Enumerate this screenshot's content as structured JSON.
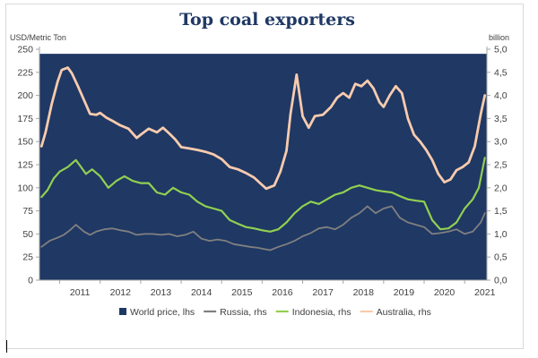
{
  "chart_data": {
    "type": "line",
    "title": "Top coal exporters",
    "left_unit": "USD/Metric Ton",
    "right_unit": "billion",
    "left_axis": {
      "min": 0,
      "max": 250,
      "ticks": [
        "0",
        "25",
        "50",
        "75",
        "100",
        "125",
        "150",
        "175",
        "200",
        "225",
        "250"
      ]
    },
    "right_axis": {
      "min": 0,
      "max": 5,
      "ticks": [
        "0,0",
        "0,5",
        "1,0",
        "1,5",
        "2,0",
        "2,5",
        "3,0",
        "3,5",
        "4,0",
        "4,5",
        "5,0"
      ]
    },
    "x_ticks": [
      "2011",
      "2012",
      "2013",
      "2014",
      "2015",
      "2016",
      "2017",
      "2018",
      "2019",
      "2020",
      "2021"
    ],
    "x_range": [
      2010.5,
      2021.55
    ],
    "legend_position": "bottom",
    "colors": {
      "world_price": "#1f3864",
      "russia": "#808080",
      "indonesia": "#92d050",
      "australia": "#f8cbad"
    },
    "series": [
      {
        "name": "World price, lhs",
        "axis": "left",
        "kind": "area",
        "color_key": "world_price",
        "x": [
          2010.5,
          2021.55
        ],
        "values": [
          245,
          245
        ]
      },
      {
        "name": "Russia, rhs",
        "axis": "right",
        "color_key": "russia",
        "x": [
          2010.55,
          2010.75,
          2010.95,
          2011.1,
          2011.25,
          2011.4,
          2011.6,
          2011.75,
          2011.9,
          2012.1,
          2012.3,
          2012.5,
          2012.7,
          2012.9,
          2013.1,
          2013.3,
          2013.5,
          2013.7,
          2013.9,
          2014.1,
          2014.3,
          2014.5,
          2014.7,
          2014.9,
          2015.1,
          2015.3,
          2015.5,
          2015.7,
          2015.9,
          2016.0,
          2016.2,
          2016.4,
          2016.6,
          2016.8,
          2017.0,
          2017.2,
          2017.4,
          2017.6,
          2017.8,
          2018.0,
          2018.2,
          2018.4,
          2018.6,
          2018.8,
          2019.0,
          2019.2,
          2019.4,
          2019.6,
          2019.8,
          2020.0,
          2020.2,
          2020.4,
          2020.6,
          2020.8,
          2021.0,
          2021.2,
          2021.4,
          2021.5
        ],
        "values": [
          0.72,
          0.85,
          0.92,
          0.98,
          1.08,
          1.2,
          1.05,
          0.98,
          1.05,
          1.1,
          1.12,
          1.08,
          1.05,
          0.98,
          1.0,
          1.0,
          0.98,
          1.0,
          0.95,
          0.98,
          1.05,
          0.9,
          0.85,
          0.88,
          0.85,
          0.78,
          0.75,
          0.72,
          0.7,
          0.68,
          0.65,
          0.72,
          0.78,
          0.85,
          0.95,
          1.02,
          1.12,
          1.15,
          1.1,
          1.2,
          1.35,
          1.45,
          1.6,
          1.45,
          1.55,
          1.6,
          1.35,
          1.25,
          1.2,
          1.15,
          1.0,
          1.02,
          1.05,
          1.1,
          1.0,
          1.05,
          1.25,
          1.45
        ]
      },
      {
        "name": "Indonesia, rhs",
        "axis": "right",
        "color_key": "indonesia",
        "x": [
          2010.55,
          2010.7,
          2010.85,
          2011.0,
          2011.2,
          2011.4,
          2011.5,
          2011.65,
          2011.8,
          2012.0,
          2012.2,
          2012.4,
          2012.6,
          2012.8,
          2013.0,
          2013.2,
          2013.4,
          2013.6,
          2013.8,
          2014.0,
          2014.2,
          2014.4,
          2014.6,
          2014.8,
          2015.0,
          2015.2,
          2015.4,
          2015.6,
          2015.8,
          2016.0,
          2016.2,
          2016.4,
          2016.6,
          2016.8,
          2017.0,
          2017.2,
          2017.4,
          2017.6,
          2017.8,
          2018.0,
          2018.2,
          2018.4,
          2018.6,
          2018.8,
          2019.0,
          2019.2,
          2019.4,
          2019.6,
          2019.8,
          2020.0,
          2020.2,
          2020.4,
          2020.6,
          2020.8,
          2021.0,
          2021.2,
          2021.35,
          2021.5
        ],
        "values": [
          1.8,
          1.95,
          2.2,
          2.35,
          2.45,
          2.6,
          2.48,
          2.3,
          2.4,
          2.25,
          2.0,
          2.15,
          2.25,
          2.15,
          2.1,
          2.1,
          1.9,
          1.85,
          2.0,
          1.9,
          1.85,
          1.7,
          1.6,
          1.55,
          1.5,
          1.3,
          1.22,
          1.15,
          1.12,
          1.08,
          1.05,
          1.1,
          1.25,
          1.45,
          1.6,
          1.7,
          1.65,
          1.75,
          1.85,
          1.9,
          2.0,
          2.05,
          2.0,
          1.95,
          1.92,
          1.9,
          1.82,
          1.75,
          1.72,
          1.7,
          1.3,
          1.1,
          1.12,
          1.25,
          1.55,
          1.75,
          2.0,
          2.65
        ]
      },
      {
        "name": "Australia, rhs",
        "axis": "right",
        "color_key": "australia",
        "x": [
          2010.55,
          2010.65,
          2010.8,
          2010.95,
          2011.05,
          2011.2,
          2011.3,
          2011.45,
          2011.6,
          2011.75,
          2011.9,
          2012.0,
          2012.15,
          2012.3,
          2012.5,
          2012.7,
          2012.9,
          2013.0,
          2013.2,
          2013.4,
          2013.55,
          2013.7,
          2013.85,
          2014.0,
          2014.2,
          2014.4,
          2014.6,
          2014.8,
          2015.0,
          2015.2,
          2015.4,
          2015.6,
          2015.8,
          2015.95,
          2016.1,
          2016.3,
          2016.45,
          2016.6,
          2016.7,
          2016.85,
          2017.0,
          2017.15,
          2017.3,
          2017.5,
          2017.7,
          2017.85,
          2018.0,
          2018.15,
          2018.3,
          2018.45,
          2018.6,
          2018.75,
          2018.9,
          2019.0,
          2019.15,
          2019.3,
          2019.45,
          2019.6,
          2019.75,
          2019.9,
          2020.05,
          2020.2,
          2020.35,
          2020.5,
          2020.65,
          2020.8,
          2020.95,
          2021.1,
          2021.25,
          2021.4,
          2021.5
        ],
        "values": [
          2.9,
          3.2,
          3.8,
          4.3,
          4.55,
          4.6,
          4.48,
          4.2,
          3.9,
          3.6,
          3.58,
          3.62,
          3.52,
          3.45,
          3.35,
          3.28,
          3.08,
          3.15,
          3.28,
          3.2,
          3.3,
          3.18,
          3.05,
          2.88,
          2.85,
          2.82,
          2.78,
          2.72,
          2.62,
          2.45,
          2.4,
          2.32,
          2.22,
          2.1,
          1.98,
          2.05,
          2.35,
          2.8,
          3.6,
          4.45,
          3.55,
          3.3,
          3.55,
          3.58,
          3.75,
          3.95,
          4.05,
          3.95,
          4.25,
          4.2,
          4.32,
          4.15,
          3.85,
          3.75,
          4.0,
          4.2,
          4.05,
          3.5,
          3.15,
          3.0,
          2.82,
          2.6,
          2.3,
          2.12,
          2.18,
          2.38,
          2.45,
          2.55,
          2.9,
          3.6,
          4.0
        ]
      }
    ]
  }
}
